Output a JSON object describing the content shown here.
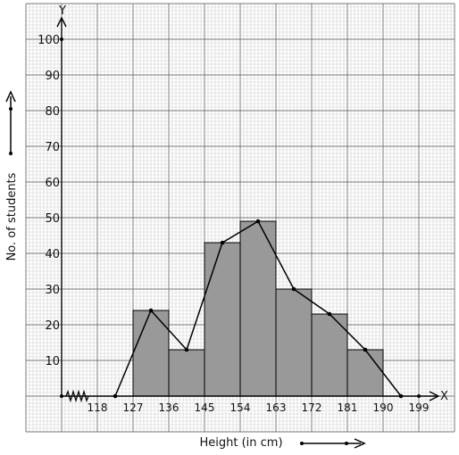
{
  "chart_data": {
    "type": "bar",
    "x_tick_labels": [
      "118",
      "127",
      "136",
      "145",
      "154",
      "163",
      "172",
      "181",
      "190",
      "199"
    ],
    "bins": [
      {
        "from": 127,
        "to": 136,
        "value": 24
      },
      {
        "from": 136,
        "to": 145,
        "value": 13
      },
      {
        "from": 145,
        "to": 154,
        "value": 43
      },
      {
        "from": 154,
        "to": 163,
        "value": 49
      },
      {
        "from": 163,
        "to": 172,
        "value": 30
      },
      {
        "from": 172,
        "to": 181,
        "value": 23
      },
      {
        "from": 181,
        "to": 190,
        "value": 13
      }
    ],
    "polygon": {
      "x": [
        122.5,
        131.5,
        140.5,
        149.5,
        158.5,
        167.5,
        176.5,
        185.5,
        194.5
      ],
      "y": [
        0,
        24,
        13,
        43,
        49,
        30,
        23,
        13,
        0
      ]
    },
    "y_ticks": [
      10,
      20,
      30,
      40,
      50,
      60,
      70,
      80,
      90,
      100
    ],
    "xlim": [
      109,
      201
    ],
    "ylim": [
      0,
      100
    ],
    "xlabel": "Height (in cm)",
    "ylabel": "No. of students",
    "x_axis_letter": "X",
    "y_axis_letter": "Y",
    "grid": true,
    "bar_color": "#999999",
    "line_color": "#000000"
  }
}
